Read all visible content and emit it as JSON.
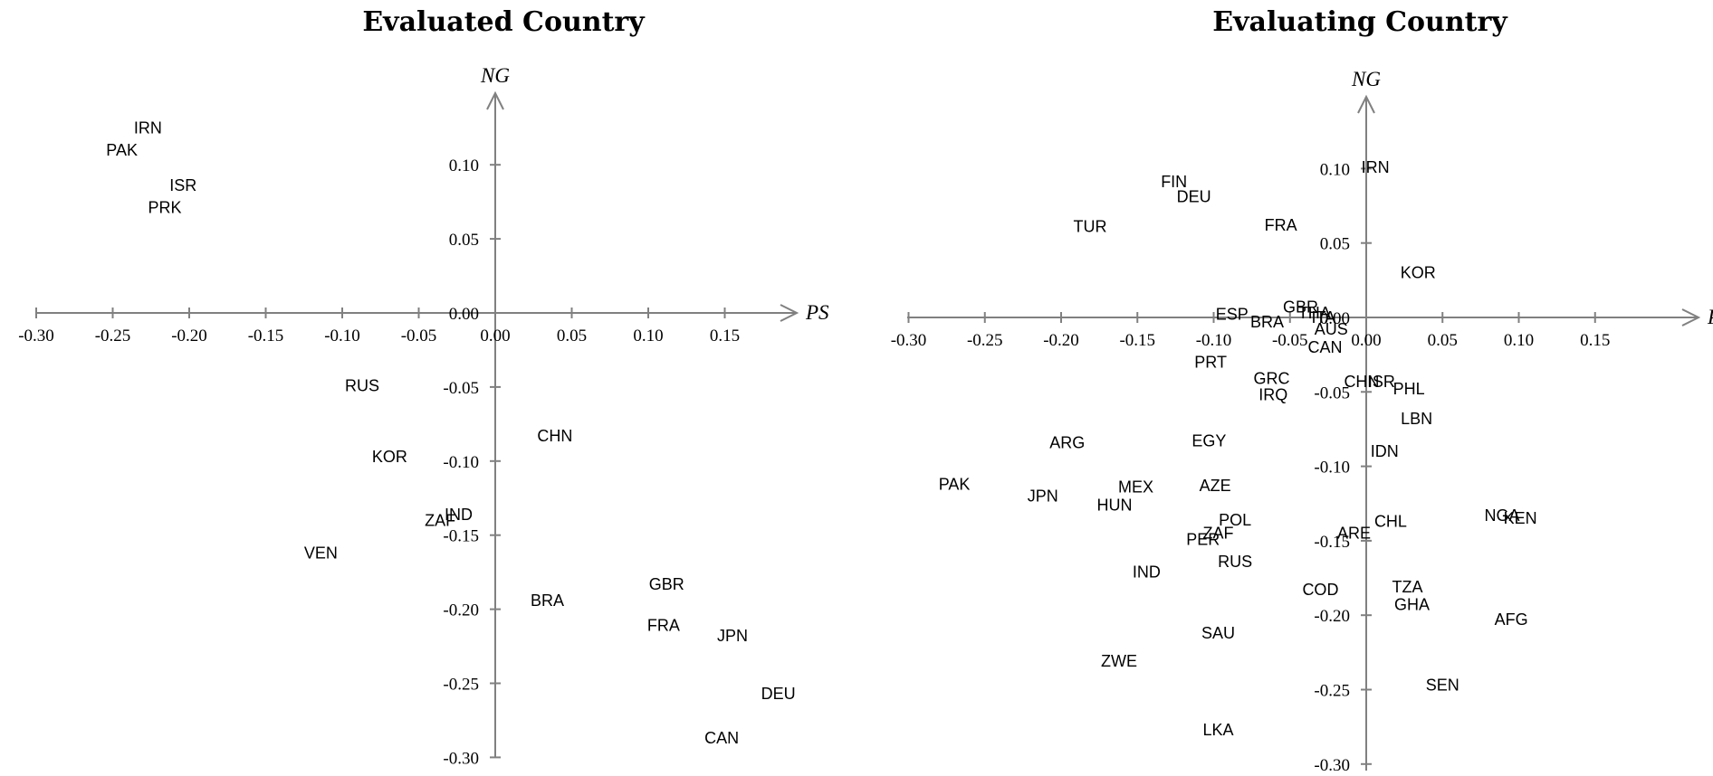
{
  "chart_data": [
    {
      "type": "scatter",
      "title": "Evaluated Country",
      "xlabel": "PS",
      "ylabel": "NG",
      "xlim": [
        -0.3,
        0.2
      ],
      "ylim": [
        -0.3,
        0.15
      ],
      "xticks": [
        -0.3,
        -0.25,
        -0.2,
        -0.15,
        -0.1,
        -0.05,
        0.0,
        0.05,
        0.1,
        0.15
      ],
      "yticks": [
        0.1,
        0.05,
        0.0,
        -0.05,
        -0.1,
        -0.15,
        -0.2,
        -0.25,
        -0.3
      ],
      "xtick_labels": [
        "-0.30",
        "-0.25",
        "-0.20",
        "-0.15",
        "-0.10",
        "-0.05",
        "0.00",
        "0.05",
        "0.10",
        "0.15"
      ],
      "ytick_labels": [
        "0.10",
        "0.05",
        "0.00",
        "-0.05",
        "-0.10",
        "-0.15",
        "-0.20",
        "-0.25",
        "-0.30"
      ],
      "points": [
        {
          "label": "IRN",
          "x": -0.227,
          "y": 0.125
        },
        {
          "label": "PAK",
          "x": -0.244,
          "y": 0.11
        },
        {
          "label": "ISR",
          "x": -0.204,
          "y": 0.086
        },
        {
          "label": "PRK",
          "x": -0.216,
          "y": 0.071
        },
        {
          "label": "RUS",
          "x": -0.087,
          "y": -0.049
        },
        {
          "label": "CHN",
          "x": 0.039,
          "y": -0.083
        },
        {
          "label": "KOR",
          "x": -0.069,
          "y": -0.097
        },
        {
          "label": "IND",
          "x": -0.024,
          "y": -0.136
        },
        {
          "label": "ZAF",
          "x": -0.036,
          "y": -0.14
        },
        {
          "label": "VEN",
          "x": -0.114,
          "y": -0.162
        },
        {
          "label": "GBR",
          "x": 0.112,
          "y": -0.183
        },
        {
          "label": "BRA",
          "x": 0.034,
          "y": -0.194
        },
        {
          "label": "FRA",
          "x": 0.11,
          "y": -0.211
        },
        {
          "label": "JPN",
          "x": 0.155,
          "y": -0.218
        },
        {
          "label": "DEU",
          "x": 0.185,
          "y": -0.257
        },
        {
          "label": "CAN",
          "x": 0.148,
          "y": -0.287
        }
      ]
    },
    {
      "type": "scatter",
      "title": "Evaluating Country",
      "xlabel": "PS",
      "ylabel": "NG",
      "xlim": [
        -0.3,
        0.2
      ],
      "ylim": [
        -0.3,
        0.15
      ],
      "xticks": [
        -0.3,
        -0.25,
        -0.2,
        -0.15,
        -0.1,
        -0.05,
        0.0,
        0.05,
        0.1,
        0.15
      ],
      "yticks": [
        0.1,
        0.05,
        0.0,
        -0.05,
        -0.1,
        -0.15,
        -0.2,
        -0.25,
        -0.3
      ],
      "xtick_labels": [
        "-0.30",
        "-0.25",
        "-0.20",
        "-0.15",
        "-0.10",
        "-0.05",
        "0.00",
        "0.05",
        "0.10",
        "0.15"
      ],
      "ytick_labels": [
        "0.10",
        "0.05",
        "0.00",
        "-0.05",
        "-0.10",
        "-0.15",
        "-0.20",
        "-0.25",
        "-0.30"
      ],
      "points": [
        {
          "label": "IRN",
          "x": 0.006,
          "y": 0.101
        },
        {
          "label": "FIN",
          "x": -0.126,
          "y": 0.091
        },
        {
          "label": "DEU",
          "x": -0.113,
          "y": 0.081
        },
        {
          "label": "TUR",
          "x": -0.181,
          "y": 0.061
        },
        {
          "label": "FRA",
          "x": -0.056,
          "y": 0.062
        },
        {
          "label": "KOR",
          "x": 0.034,
          "y": 0.03
        },
        {
          "label": "GBR",
          "x": -0.043,
          "y": 0.007
        },
        {
          "label": "THA",
          "x": -0.034,
          "y": 0.003
        },
        {
          "label": "ESP",
          "x": -0.088,
          "y": 0.002
        },
        {
          "label": "ITA",
          "x": -0.028,
          "y": 0.0
        },
        {
          "label": "BRA",
          "x": -0.065,
          "y": -0.003
        },
        {
          "label": "AUS",
          "x": -0.023,
          "y": -0.008
        },
        {
          "label": "CAN",
          "x": -0.027,
          "y": -0.02
        },
        {
          "label": "PRT",
          "x": -0.102,
          "y": -0.03
        },
        {
          "label": "GRC",
          "x": -0.062,
          "y": -0.041
        },
        {
          "label": "CHN",
          "x": -0.003,
          "y": -0.043
        },
        {
          "label": "ISR",
          "x": 0.01,
          "y": -0.043
        },
        {
          "label": "PHL",
          "x": 0.028,
          "y": -0.048
        },
        {
          "label": "IRQ",
          "x": -0.061,
          "y": -0.052
        },
        {
          "label": "LBN",
          "x": 0.033,
          "y": -0.068
        },
        {
          "label": "ARG",
          "x": -0.196,
          "y": -0.084
        },
        {
          "label": "EGY",
          "x": -0.103,
          "y": -0.083
        },
        {
          "label": "IDN",
          "x": 0.012,
          "y": -0.09
        },
        {
          "label": "PAK",
          "x": -0.27,
          "y": -0.112
        },
        {
          "label": "MEX",
          "x": -0.151,
          "y": -0.114
        },
        {
          "label": "AZE",
          "x": -0.099,
          "y": -0.113
        },
        {
          "label": "JPN",
          "x": -0.212,
          "y": -0.12
        },
        {
          "label": "HUN",
          "x": -0.165,
          "y": -0.126
        },
        {
          "label": "NGA",
          "x": 0.089,
          "y": -0.133
        },
        {
          "label": "KEN",
          "x": 0.101,
          "y": -0.135
        },
        {
          "label": "POL",
          "x": -0.086,
          "y": -0.136
        },
        {
          "label": "CHL",
          "x": 0.016,
          "y": -0.137
        },
        {
          "label": "ARE",
          "x": -0.008,
          "y": -0.145
        },
        {
          "label": "ZAF",
          "x": -0.097,
          "y": -0.145
        },
        {
          "label": "PER",
          "x": -0.107,
          "y": -0.149
        },
        {
          "label": "RUS",
          "x": -0.086,
          "y": -0.164
        },
        {
          "label": "IND",
          "x": -0.144,
          "y": -0.171
        },
        {
          "label": "TZA",
          "x": 0.027,
          "y": -0.181
        },
        {
          "label": "COD",
          "x": -0.03,
          "y": -0.183
        },
        {
          "label": "GHA",
          "x": 0.03,
          "y": -0.193
        },
        {
          "label": "AFG",
          "x": 0.095,
          "y": -0.203
        },
        {
          "label": "SAU",
          "x": -0.097,
          "y": -0.212
        },
        {
          "label": "ZWE",
          "x": -0.162,
          "y": -0.231
        },
        {
          "label": "SEN",
          "x": 0.05,
          "y": -0.247
        },
        {
          "label": "LKA",
          "x": -0.097,
          "y": -0.277
        }
      ]
    }
  ]
}
